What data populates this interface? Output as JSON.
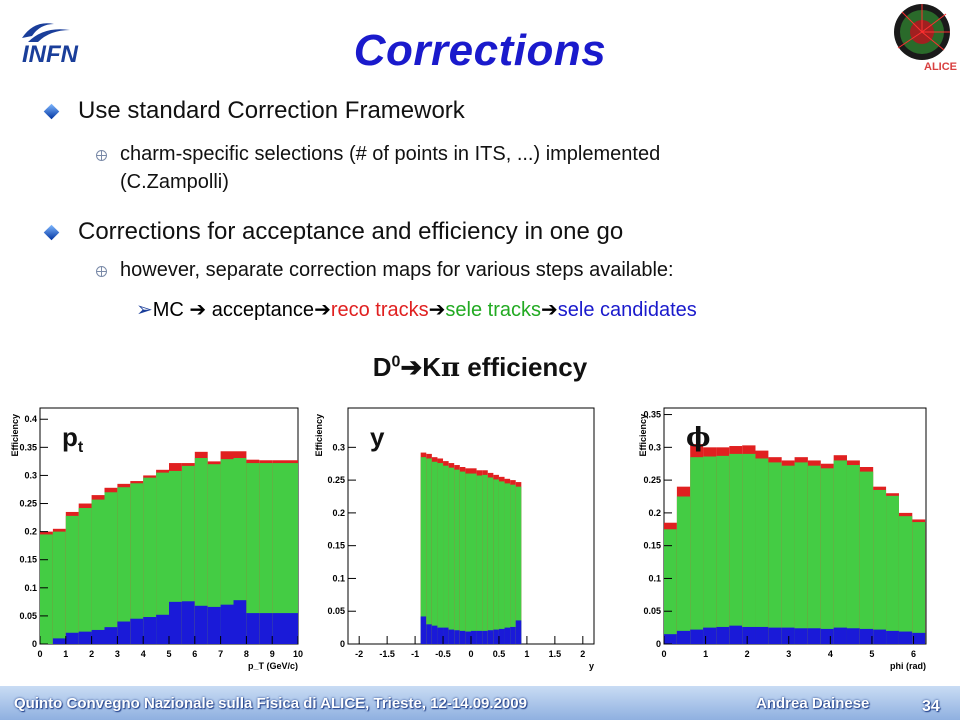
{
  "slide": {
    "title": "Corrections",
    "bullets": [
      {
        "text": "Use standard Correction Framework",
        "sub": [
          "charm-specific selections (# of points in ITS, ...) implemented",
          "(C.Zampolli)"
        ]
      },
      {
        "text": "Corrections for acceptance and efficiency in one go",
        "sub": [
          "however, separate correction maps for various steps available:"
        ]
      }
    ],
    "steps": {
      "arrow": "➢",
      "parts": [
        {
          "text": "MC",
          "color": "#111111"
        },
        {
          "text": " acceptance",
          "color": "#111111"
        },
        {
          "text": "reco tracks",
          "color": "#e02020"
        },
        {
          "text": "sele tracks",
          "color": "#22aa22"
        },
        {
          "text": "sele candidates",
          "color": "#1a1acc"
        }
      ]
    },
    "eff_title_main": "D",
    "eff_title_sup": "0",
    "eff_title_rest": "K",
    "eff_title_pi": "π",
    "eff_title_end": " efficiency",
    "footer": {
      "conference": "Quinto Convegno Nazionale sulla Fisica di ALICE, Trieste, 12-14.09.2009",
      "author": "Andrea Dainese",
      "page": "34"
    },
    "logos": {
      "infn": "INFN",
      "alice": "ALICE"
    }
  },
  "colors": {
    "reco": "#e02020",
    "sele": "#44cc44",
    "cand": "#1a1ad8",
    "title": "#1a1acc"
  },
  "chart_data": [
    {
      "type": "bar",
      "label": "pt",
      "ylabel": "Efficiency",
      "xlabel": "p_T (GeV/c)",
      "xlim": [
        0,
        10
      ],
      "ylim": [
        0,
        0.42
      ],
      "yticks": [
        0,
        0.05,
        0.1,
        0.15,
        0.2,
        0.25,
        0.3,
        0.35,
        0.4
      ],
      "xticks": [
        0,
        1,
        2,
        3,
        4,
        5,
        6,
        7,
        8,
        9,
        10
      ],
      "bin_edges": [
        0,
        0.5,
        1,
        1.5,
        2,
        2.5,
        3,
        3.5,
        4,
        4.5,
        5,
        5.5,
        6,
        6.5,
        7,
        7.5,
        8,
        8.5,
        9,
        10
      ],
      "reco_tracks": [
        0.2,
        0.205,
        0.235,
        0.25,
        0.265,
        0.278,
        0.285,
        0.29,
        0.3,
        0.31,
        0.322,
        0.322,
        0.342,
        0.325,
        0.343,
        0.343,
        0.328,
        0.327,
        0.327
      ],
      "sele_tracks": [
        0.195,
        0.2,
        0.228,
        0.242,
        0.257,
        0.27,
        0.279,
        0.286,
        0.296,
        0.305,
        0.308,
        0.317,
        0.331,
        0.32,
        0.329,
        0.331,
        0.322,
        0.322,
        0.322
      ],
      "sele_candidates": [
        0.0,
        0.01,
        0.02,
        0.022,
        0.025,
        0.03,
        0.04,
        0.045,
        0.048,
        0.052,
        0.075,
        0.076,
        0.068,
        0.066,
        0.07,
        0.078,
        0.055,
        0.055,
        0.055
      ]
    },
    {
      "type": "bar",
      "label": "y",
      "ylabel": "Efficiency",
      "xlabel": "y",
      "xlim": [
        -2.2,
        2.2
      ],
      "ylim": [
        0,
        0.36
      ],
      "yticks": [
        0,
        0.05,
        0.1,
        0.15,
        0.2,
        0.25,
        0.3
      ],
      "xticks": [
        -2,
        -1.5,
        -1,
        -0.5,
        0,
        0.5,
        1,
        1.5,
        2
      ],
      "bin_edges": [
        -0.9,
        -0.8,
        -0.7,
        -0.6,
        -0.5,
        -0.4,
        -0.3,
        -0.2,
        -0.1,
        0,
        0.1,
        0.2,
        0.3,
        0.4,
        0.5,
        0.6,
        0.7,
        0.8,
        0.9
      ],
      "reco_tracks": [
        0.292,
        0.29,
        0.285,
        0.283,
        0.279,
        0.276,
        0.273,
        0.27,
        0.268,
        0.268,
        0.265,
        0.265,
        0.261,
        0.258,
        0.255,
        0.252,
        0.25,
        0.247
      ],
      "sele_tracks": [
        0.285,
        0.283,
        0.278,
        0.276,
        0.272,
        0.269,
        0.266,
        0.263,
        0.26,
        0.26,
        0.257,
        0.258,
        0.254,
        0.251,
        0.248,
        0.245,
        0.243,
        0.24
      ],
      "sele_candidates": [
        0.042,
        0.03,
        0.028,
        0.025,
        0.025,
        0.022,
        0.021,
        0.02,
        0.019,
        0.02,
        0.02,
        0.02,
        0.021,
        0.022,
        0.023,
        0.025,
        0.026,
        0.036
      ]
    },
    {
      "type": "bar",
      "label": "phi",
      "ylabel": "Efficiency",
      "xlabel": "phi (rad)",
      "xlim": [
        0,
        6.3
      ],
      "ylim": [
        0,
        0.36
      ],
      "yticks": [
        0,
        0.05,
        0.1,
        0.15,
        0.2,
        0.25,
        0.3,
        0.35
      ],
      "xticks": [
        0,
        1,
        2,
        3,
        4,
        5,
        6
      ],
      "bin_edges": [
        0,
        0.31,
        0.63,
        0.94,
        1.26,
        1.57,
        1.88,
        2.2,
        2.51,
        2.83,
        3.14,
        3.46,
        3.77,
        4.08,
        4.4,
        4.71,
        5.03,
        5.34,
        5.65,
        5.97,
        6.28
      ],
      "reco_tracks": [
        0.185,
        0.24,
        0.305,
        0.3,
        0.3,
        0.302,
        0.303,
        0.295,
        0.285,
        0.28,
        0.285,
        0.28,
        0.275,
        0.288,
        0.28,
        0.27,
        0.24,
        0.23,
        0.2,
        0.19
      ],
      "sele_tracks": [
        0.175,
        0.225,
        0.285,
        0.286,
        0.287,
        0.29,
        0.29,
        0.283,
        0.277,
        0.272,
        0.277,
        0.272,
        0.268,
        0.28,
        0.273,
        0.263,
        0.235,
        0.226,
        0.195,
        0.186
      ],
      "sele_candidates": [
        0.015,
        0.02,
        0.022,
        0.025,
        0.026,
        0.028,
        0.026,
        0.026,
        0.025,
        0.025,
        0.024,
        0.024,
        0.023,
        0.025,
        0.024,
        0.023,
        0.022,
        0.02,
        0.019,
        0.017
      ]
    }
  ]
}
